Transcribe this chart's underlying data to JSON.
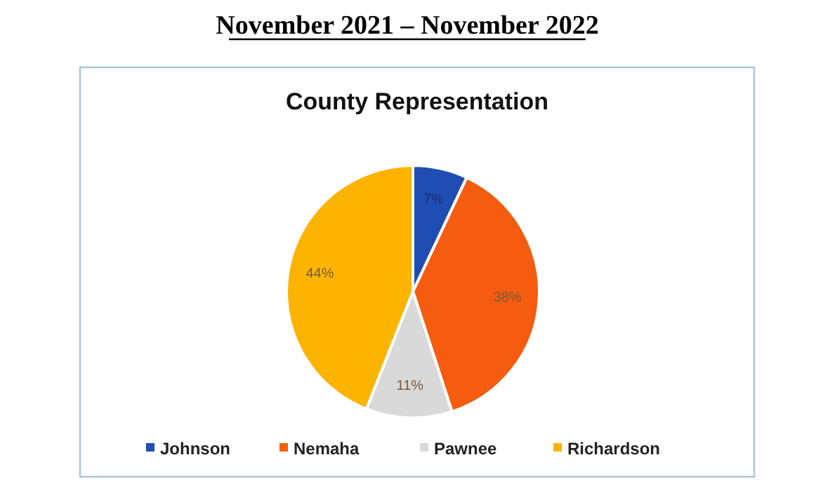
{
  "chart_data": {
    "type": "pie",
    "title": "County Representation",
    "subtitle": "November 2021 – November 2022",
    "categories": [
      "Johnson",
      "Nemaha",
      "Pawnee",
      "Richardson"
    ],
    "values": [
      7,
      38,
      11,
      44
    ],
    "colors": [
      "#1f4db3",
      "#f55c10",
      "#d9d9d9",
      "#fdb400"
    ],
    "value_labels": [
      "7%",
      "38%",
      "11%",
      "44%"
    ],
    "legend": "bottom"
  }
}
